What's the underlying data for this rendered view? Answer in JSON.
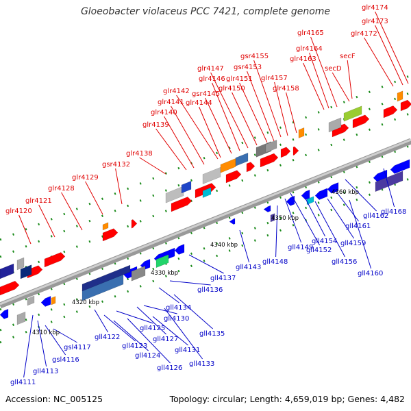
{
  "title": "Gloeobacter violaceus PCC 7421, complete genome",
  "accession": "Accession: NC_005125",
  "summary": "Topology: circular; Length: 4,659,019 bp; Genes: 4,482",
  "colors": {
    "forward_label": "#e00000",
    "reverse_label": "#0000c8",
    "forward_gene": "#ff0000",
    "reverse_gene": "#0000ff",
    "backbone": "#888888"
  },
  "kbp_ticks": [
    "4310 kbp",
    "4320 kbp",
    "4330 kbp",
    "4340 kbp",
    "4350 kbp",
    "4360 kbp"
  ],
  "forward_labels": [
    "glr4120",
    "glr4121",
    "glr4128",
    "glr4129",
    "gsr4132",
    "glr4138",
    "glr4139",
    "glr4140",
    "glr4141",
    "glr4142",
    "glr4144",
    "gsr4145",
    "glr4146",
    "glr4147",
    "glr4150",
    "glr4151",
    "gsr4153",
    "gsr4155",
    "glr4157",
    "glr4158",
    "glr4163",
    "glr4164",
    "glr4165",
    "secD",
    "secF",
    "glr4172",
    "glr4173",
    "glr4174"
  ],
  "reverse_labels": [
    "gll4111",
    "gll4113",
    "gsl4116",
    "gsl4117",
    "gll4122",
    "gll4123",
    "gll4124",
    "gll4125",
    "gll4126",
    "gll4127",
    "gll4130",
    "gll4131",
    "gll4133",
    "gll4134",
    "gll4135",
    "gll4136",
    "gll4137",
    "gll4143",
    "gll4148",
    "gll4149",
    "gll4152",
    "gll4154",
    "gll4156",
    "gll4159",
    "gll4160",
    "gll4161",
    "gll4162",
    "gll4168"
  ]
}
